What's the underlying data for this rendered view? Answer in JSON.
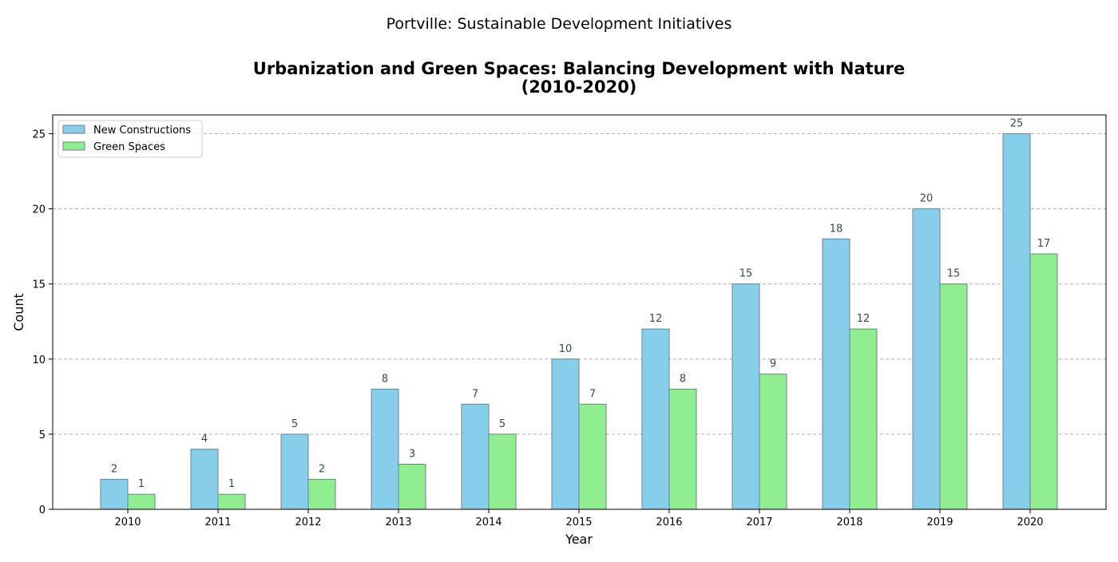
{
  "page": {
    "suptitle": "Portville: Sustainable Development Initiatives"
  },
  "chart_data": {
    "type": "bar",
    "title_line1": "Urbanization and Green Spaces: Balancing Development with Nature",
    "title_line2": "(2010-2020)",
    "xlabel": "Year",
    "ylabel": "Count",
    "categories": [
      "2010",
      "2011",
      "2012",
      "2013",
      "2014",
      "2015",
      "2016",
      "2017",
      "2018",
      "2019",
      "2020"
    ],
    "series": [
      {
        "name": "New Constructions",
        "color": "#87CEEB",
        "values": [
          2,
          4,
          5,
          8,
          7,
          10,
          12,
          15,
          18,
          20,
          25
        ]
      },
      {
        "name": "Green Spaces",
        "color": "#90EE90",
        "values": [
          1,
          1,
          2,
          3,
          5,
          7,
          8,
          9,
          12,
          15,
          17
        ]
      }
    ],
    "ylim": [
      0,
      26.25
    ],
    "yticks": [
      0,
      5,
      10,
      15,
      20,
      25
    ],
    "grid": "y-dashed",
    "legend_position": "upper left",
    "bar_edge_color": "#708090",
    "data_label_color": "#2F4F4F"
  }
}
